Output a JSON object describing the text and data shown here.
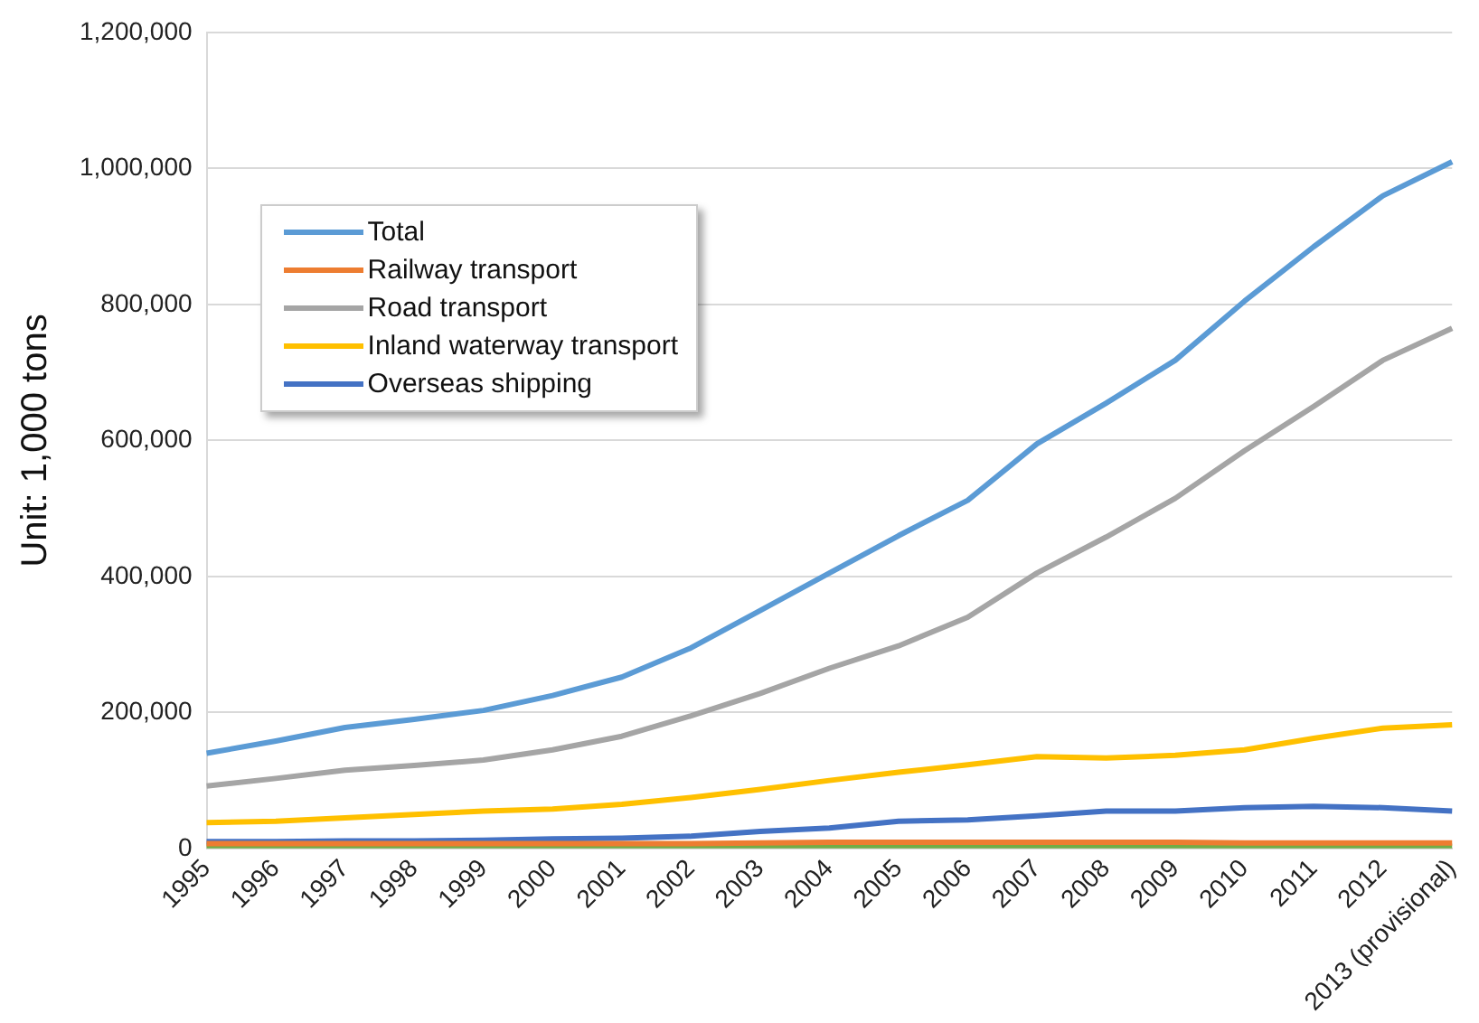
{
  "chart_data": {
    "type": "line",
    "ylabel": "Unit: 1,000 tons",
    "categories": [
      "1995",
      "1996",
      "1997",
      "1998",
      "1999",
      "2000",
      "2001",
      "2002",
      "2003",
      "2004",
      "2005",
      "2006",
      "2007",
      "2008",
      "2009",
      "2010",
      "2011",
      "2012",
      "2013 (provisional)"
    ],
    "series": [
      {
        "name": "Total",
        "color": "#5b9bd5",
        "values": [
          140000,
          158000,
          178000,
          190000,
          203000,
          225000,
          252000,
          295000,
          350000,
          405000,
          460000,
          512000,
          595000,
          655000,
          718000,
          805000,
          885000,
          960000,
          1010000
        ]
      },
      {
        "name": "Railway transport",
        "color": "#ed7d31",
        "values": [
          7000,
          7000,
          7000,
          7000,
          7000,
          7000,
          7000,
          7000,
          8000,
          9000,
          9000,
          9000,
          9000,
          9000,
          9000,
          8000,
          8000,
          8000,
          8000
        ]
      },
      {
        "name": "Road transport",
        "color": "#a5a5a5",
        "values": [
          92000,
          103000,
          115000,
          122000,
          130000,
          145000,
          165000,
          195000,
          228000,
          265000,
          298000,
          340000,
          405000,
          458000,
          515000,
          585000,
          650000,
          718000,
          765000
        ]
      },
      {
        "name": "Inland waterway transport",
        "color": "#ffc000",
        "values": [
          38000,
          40000,
          45000,
          50000,
          55000,
          58000,
          65000,
          75000,
          87000,
          100000,
          112000,
          123000,
          135000,
          133000,
          137000,
          145000,
          162000,
          177000,
          182000
        ]
      },
      {
        "name": "Overseas shipping",
        "color": "#4472c4",
        "values": [
          10000,
          10000,
          11000,
          11000,
          12000,
          14000,
          15000,
          18000,
          25000,
          30000,
          40000,
          42000,
          48000,
          55000,
          55000,
          60000,
          62000,
          60000,
          55000
        ]
      },
      {
        "color": "#70ad47",
        "values": [
          3000,
          3000,
          3000,
          3000,
          3000,
          3000,
          3000,
          3000,
          3000,
          3000,
          3000,
          3000,
          3000,
          3000,
          3000,
          3000,
          3000,
          3000,
          3000
        ]
      }
    ],
    "ylim": [
      0,
      1200000
    ],
    "yticks": [
      {
        "value": 0,
        "label": "0"
      },
      {
        "value": 200000,
        "label": "200,000"
      },
      {
        "value": 400000,
        "label": "400,000"
      },
      {
        "value": 600000,
        "label": "600,000"
      },
      {
        "value": 800000,
        "label": "800,000"
      },
      {
        "value": 1000000,
        "label": "1,000,000"
      },
      {
        "value": 1200000,
        "label": "1,200,000"
      }
    ],
    "grid": "y",
    "legend": "top left",
    "marker": "none",
    "line_style": "solid"
  }
}
